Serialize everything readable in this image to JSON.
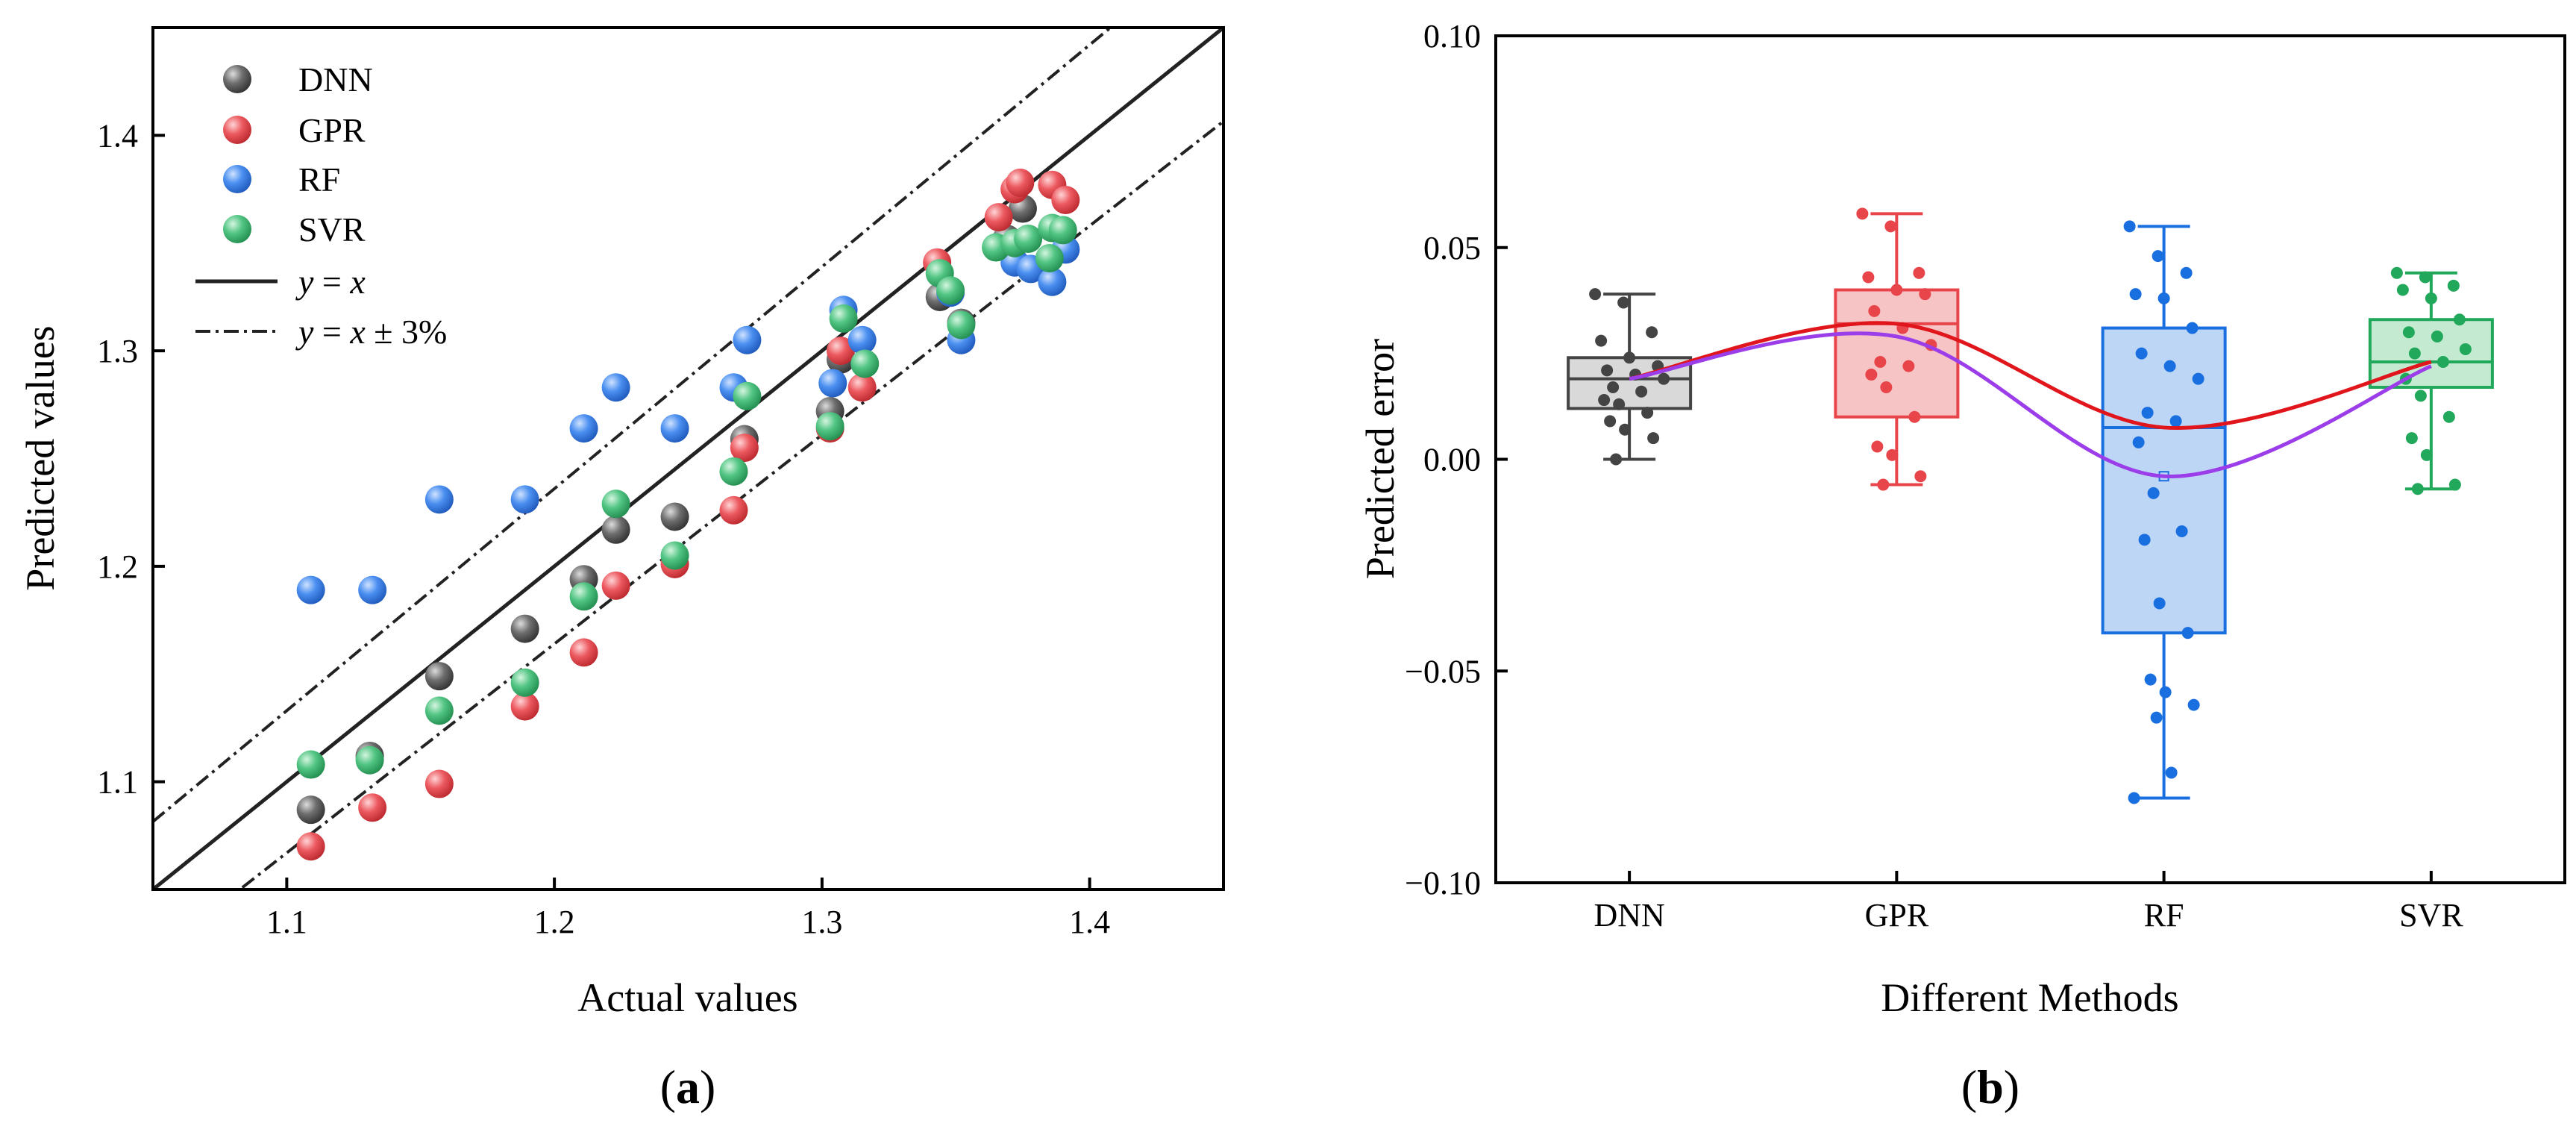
{
  "panels": {
    "a": {
      "label_open": "(",
      "label_letter": "a",
      "label_close": ")"
    },
    "b": {
      "label_open": "(",
      "label_letter": "b",
      "label_close": ")"
    }
  },
  "legend_labels": {
    "dnn": "DNN",
    "gpr": "GPR",
    "rf": "RF",
    "svr": "SVR",
    "yx_y": "y",
    "yx_eq": " = ",
    "yx_x": "x",
    "band_y": "y",
    "band_eq": " = ",
    "band_x": "x",
    "band_pm": " ± 3%"
  },
  "chart_data": [
    {
      "type": "scatter",
      "title": "",
      "xlabel": "Actual values",
      "ylabel": "Predicted values",
      "xlim": [
        1.05,
        1.45
      ],
      "ylim": [
        1.05,
        1.45
      ],
      "xticks": [
        1.1,
        1.2,
        1.3,
        1.4
      ],
      "yticks": [
        1.1,
        1.2,
        1.3,
        1.4
      ],
      "xtick_labels": [
        "1.1",
        "1.2",
        "1.3",
        "1.4"
      ],
      "ytick_labels": [
        "1.1",
        "1.2",
        "1.3",
        "1.4"
      ],
      "legend_position": "top-left",
      "reference_lines": [
        {
          "name": "y = x",
          "slope": 1.0,
          "style": "solid"
        },
        {
          "name": "y = x + 3%",
          "slope": 1.03,
          "style": "dashdot"
        },
        {
          "name": "y = x - 3%",
          "slope": 0.97,
          "style": "dashdot"
        }
      ],
      "colors": {
        "DNN": "#555555",
        "GPR": "#e8454b",
        "RF": "#3a7fe0",
        "SVR": "#3fb872"
      },
      "series": [
        {
          "name": "DNN",
          "x": [
            1.109,
            1.131,
            1.157,
            1.189,
            1.211,
            1.223,
            1.245,
            1.271,
            1.303,
            1.307,
            1.344,
            1.352,
            1.369,
            1.375
          ],
          "y": [
            1.087,
            1.112,
            1.149,
            1.171,
            1.194,
            1.217,
            1.223,
            1.259,
            1.272,
            1.296,
            1.325,
            1.313,
            1.352,
            1.366
          ]
        },
        {
          "name": "GPR",
          "x": [
            1.109,
            1.132,
            1.157,
            1.189,
            1.211,
            1.223,
            1.245,
            1.267,
            1.271,
            1.303,
            1.307,
            1.315,
            1.343,
            1.366,
            1.372,
            1.374,
            1.386,
            1.391
          ],
          "y": [
            1.07,
            1.088,
            1.099,
            1.135,
            1.16,
            1.191,
            1.201,
            1.226,
            1.255,
            1.264,
            1.3,
            1.283,
            1.341,
            1.362,
            1.375,
            1.378,
            1.377,
            1.37
          ]
        },
        {
          "name": "RF",
          "x": [
            1.109,
            1.132,
            1.157,
            1.189,
            1.211,
            1.223,
            1.245,
            1.267,
            1.272,
            1.304,
            1.308,
            1.315,
            1.348,
            1.352,
            1.372,
            1.378,
            1.386,
            1.391
          ],
          "y": [
            1.189,
            1.189,
            1.231,
            1.231,
            1.264,
            1.283,
            1.264,
            1.283,
            1.305,
            1.285,
            1.319,
            1.305,
            1.327,
            1.305,
            1.341,
            1.338,
            1.332,
            1.347
          ]
        },
        {
          "name": "SVR",
          "x": [
            1.109,
            1.131,
            1.157,
            1.189,
            1.211,
            1.223,
            1.245,
            1.267,
            1.272,
            1.303,
            1.308,
            1.316,
            1.344,
            1.348,
            1.352,
            1.365,
            1.372,
            1.377,
            1.385,
            1.386,
            1.39
          ],
          "y": [
            1.108,
            1.11,
            1.133,
            1.146,
            1.186,
            1.229,
            1.205,
            1.244,
            1.279,
            1.265,
            1.315,
            1.294,
            1.336,
            1.328,
            1.312,
            1.348,
            1.35,
            1.352,
            1.343,
            1.357,
            1.356
          ]
        }
      ]
    },
    {
      "type": "box",
      "title": "",
      "xlabel": "Different Methods",
      "ylabel": "Predicted error",
      "categories": [
        "DNN",
        "GPR",
        "RF",
        "SVR"
      ],
      "ylim": [
        -0.1,
        0.1
      ],
      "yticks": [
        -0.1,
        -0.05,
        0.0,
        0.05,
        0.1
      ],
      "ytick_labels": [
        "−0.10",
        "−0.05",
        "0.00",
        "0.05",
        "0.10"
      ],
      "colors": {
        "DNN": "#444444",
        "GPR": "#e8454b",
        "RF": "#1a6fe0",
        "SVR": "#22a85a"
      },
      "fills": {
        "DNN": "#d9d9d9",
        "GPR": "#f7c4c6",
        "RF": "#bed6f6",
        "SVR": "#c4ebd2"
      },
      "boxes": [
        {
          "name": "DNN",
          "whisker_low": 0.0,
          "q1": 0.012,
          "median": 0.019,
          "q3": 0.024,
          "whisker_high": 0.039
        },
        {
          "name": "GPR",
          "whisker_low": -0.006,
          "q1": 0.01,
          "median": 0.032,
          "q3": 0.04,
          "whisker_high": 0.058
        },
        {
          "name": "RF",
          "whisker_low": -0.08,
          "q1": -0.041,
          "median": 0.0075,
          "q3": 0.031,
          "whisker_high": 0.055,
          "mean": -0.004
        },
        {
          "name": "SVR",
          "whisker_low": -0.007,
          "q1": 0.017,
          "median": 0.023,
          "q3": 0.033,
          "whisker_high": 0.044
        }
      ],
      "points": {
        "DNN": [
          0.039,
          0.037,
          0.03,
          0.028,
          0.024,
          0.022,
          0.021,
          0.02,
          0.019,
          0.017,
          0.016,
          0.014,
          0.013,
          0.011,
          0.009,
          0.007,
          0.005,
          0.0
        ],
        "GPR": [
          0.058,
          0.055,
          0.044,
          0.043,
          0.04,
          0.039,
          0.035,
          0.031,
          0.027,
          0.023,
          0.022,
          0.02,
          0.017,
          0.01,
          0.003,
          0.001,
          -0.004,
          -0.006
        ],
        "RF": [
          0.055,
          0.048,
          0.044,
          0.039,
          0.038,
          0.031,
          0.025,
          0.022,
          0.019,
          0.011,
          0.009,
          0.004,
          -0.008,
          -0.017,
          -0.019,
          -0.034,
          -0.041,
          -0.052,
          -0.055,
          -0.058,
          -0.061,
          -0.074,
          -0.08
        ],
        "SVR": [
          0.044,
          0.043,
          0.041,
          0.04,
          0.038,
          0.033,
          0.03,
          0.029,
          0.026,
          0.025,
          0.023,
          0.019,
          0.015,
          0.01,
          0.005,
          0.001,
          -0.006,
          -0.007
        ]
      },
      "trend_lines": [
        {
          "name": "median trend",
          "color": "#e0161c",
          "values": [
            0.019,
            0.032,
            0.0075,
            0.023
          ]
        },
        {
          "name": "mean trend",
          "color": "#9b3de8",
          "values": [
            0.019,
            0.029,
            -0.004,
            0.022
          ]
        }
      ]
    }
  ]
}
